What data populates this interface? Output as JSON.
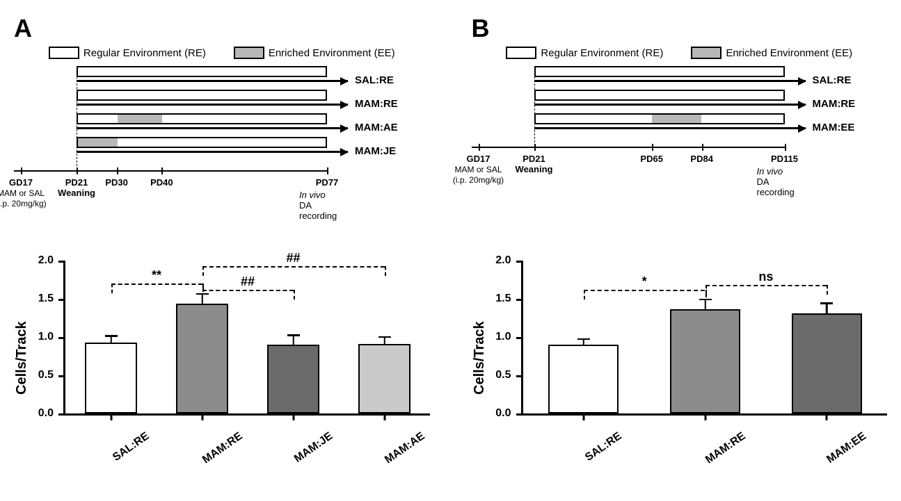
{
  "colors": {
    "white": "#ffffff",
    "light_gray": "#b8b8b8",
    "mid_gray": "#8c8c8c",
    "dark_gray": "#6b6b6b",
    "lightest_gray": "#cacaca",
    "black": "#000000"
  },
  "panelA": {
    "label": "A",
    "legend": {
      "re_label": "Regular Environment (RE)",
      "re_color": "#ffffff",
      "ee_label": "Enriched Environment (EE)",
      "ee_color": "#b8b8b8"
    },
    "timeline": {
      "injection_label": "GD17",
      "injection_sub": "MAM or SAL",
      "injection_sub2": "(i.p. 20mg/kg)",
      "ticks": [
        {
          "label": "PD21",
          "sub": "Weaning",
          "pos": 0
        },
        {
          "label": "PD30",
          "pos": 0.16
        },
        {
          "label": "PD40",
          "pos": 0.34
        },
        {
          "label": "PD77",
          "pos": 1.0
        }
      ],
      "end_label": "In vivo",
      "end_label2": " DA recording",
      "rows": [
        {
          "name": "SAL:RE",
          "segments": [
            {
              "color": "#ffffff",
              "len": 1.0
            }
          ]
        },
        {
          "name": "MAM:RE",
          "segments": [
            {
              "color": "#ffffff",
              "len": 1.0
            }
          ]
        },
        {
          "name": "MAM:AE",
          "segments": [
            {
              "color": "#ffffff",
              "len": 0.16
            },
            {
              "color": "#b8b8b8",
              "len": 0.18
            },
            {
              "color": "#ffffff",
              "len": 0.66
            }
          ]
        },
        {
          "name": "MAM:JE",
          "segments": [
            {
              "color": "#b8b8b8",
              "len": 0.16
            },
            {
              "color": "#ffffff",
              "len": 0.84
            }
          ]
        }
      ]
    },
    "chart": {
      "ylabel": "Cells/Track",
      "ymin": 0.0,
      "ymax": 2.0,
      "ystep": 0.5,
      "bars": [
        {
          "label": "SAL:RE",
          "value": 0.93,
          "error": 0.08,
          "color": "#ffffff"
        },
        {
          "label": "MAM:RE",
          "value": 1.44,
          "error": 0.12,
          "color": "#8c8c8c"
        },
        {
          "label": "MAM:JE",
          "value": 0.9,
          "error": 0.12,
          "color": "#6b6b6b"
        },
        {
          "label": "MAM:AE",
          "value": 0.91,
          "error": 0.09,
          "color": "#cacaca"
        }
      ],
      "sig": [
        {
          "from": 0,
          "to": 1,
          "label": "**",
          "height": 1.7
        },
        {
          "from": 1,
          "to": 2,
          "label": "##",
          "height": 1.62
        },
        {
          "from": 1,
          "to": 3,
          "label": "##",
          "height": 1.93
        }
      ]
    }
  },
  "panelB": {
    "label": "B",
    "legend": {
      "re_label": "Regular Environment (RE)",
      "re_color": "#ffffff",
      "ee_label": "Enriched Environment (EE)",
      "ee_color": "#b8b8b8"
    },
    "timeline": {
      "injection_label": "GD17",
      "injection_sub": "MAM or SAL",
      "injection_sub2": "(i.p. 20mg/kg)",
      "ticks": [
        {
          "label": "PD21",
          "sub": "Weaning",
          "pos": 0
        },
        {
          "label": "PD65",
          "pos": 0.47
        },
        {
          "label": "PD84",
          "pos": 0.67
        },
        {
          "label": "PD115",
          "pos": 1.0
        }
      ],
      "end_label": "In vivo",
      "end_label2": " DA recording",
      "rows": [
        {
          "name": "SAL:RE",
          "segments": [
            {
              "color": "#ffffff",
              "len": 1.0
            }
          ]
        },
        {
          "name": "MAM:RE",
          "segments": [
            {
              "color": "#ffffff",
              "len": 1.0
            }
          ]
        },
        {
          "name": "MAM:EE",
          "segments": [
            {
              "color": "#ffffff",
              "len": 0.47
            },
            {
              "color": "#b8b8b8",
              "len": 0.2
            },
            {
              "color": "#ffffff",
              "len": 0.33
            }
          ]
        }
      ]
    },
    "chart": {
      "ylabel": "Cells/Track",
      "ymin": 0.0,
      "ymax": 2.0,
      "ystep": 0.5,
      "bars": [
        {
          "label": "SAL:RE",
          "value": 0.9,
          "error": 0.07,
          "color": "#ffffff"
        },
        {
          "label": "MAM:RE",
          "value": 1.36,
          "error": 0.13,
          "color": "#8c8c8c"
        },
        {
          "label": "MAM:EE",
          "value": 1.31,
          "error": 0.13,
          "color": "#6b6b6b"
        }
      ],
      "sig": [
        {
          "from": 0,
          "to": 1,
          "label": "*",
          "height": 1.62
        },
        {
          "from": 1,
          "to": 2,
          "label": "ns",
          "height": 1.68
        }
      ]
    }
  }
}
